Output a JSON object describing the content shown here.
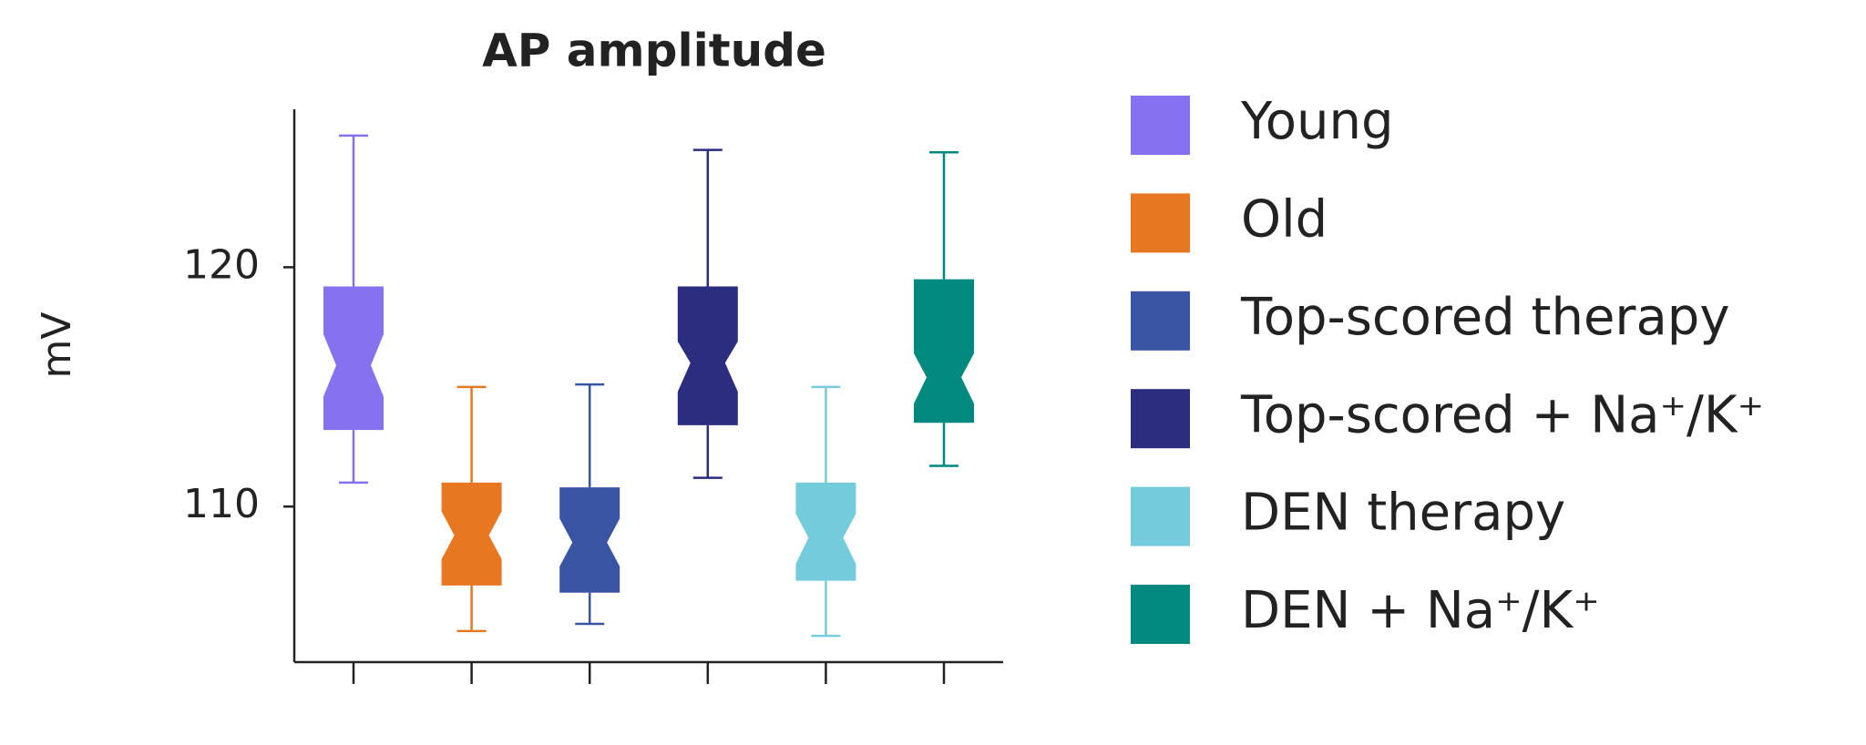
{
  "chart_data": {
    "type": "box",
    "title": "AP amplitude",
    "y_label": "mV",
    "categories": [
      null,
      null,
      null,
      null,
      null,
      null
    ],
    "ylim": [
      103.5,
      126.6
    ],
    "yticks": [
      110,
      120
    ],
    "series": [
      {
        "name": "Young",
        "color": "#8672f0",
        "whisker_low": 111.0,
        "q1": 113.2,
        "notch_low": 114.6,
        "median": 115.9,
        "notch_high": 117.2,
        "q3": 119.2,
        "whisker_high": 125.5
      },
      {
        "name": "Old",
        "color": "#e87722",
        "whisker_low": 104.8,
        "q1": 106.7,
        "notch_low": 107.8,
        "median": 108.8,
        "notch_high": 109.8,
        "q3": 111.0,
        "whisker_high": 115.0
      },
      {
        "name": "Top-scored therapy",
        "color": "#3a54a4",
        "whisker_low": 105.1,
        "q1": 106.4,
        "notch_low": 107.5,
        "median": 108.5,
        "notch_high": 109.5,
        "q3": 110.8,
        "whisker_high": 115.1
      },
      {
        "name": "Top-scored + Na⁺/K⁺",
        "color": "#2b2d7e",
        "whisker_low": 111.2,
        "q1": 113.4,
        "notch_low": 114.8,
        "median": 116.0,
        "notch_high": 116.9,
        "q3": 119.2,
        "whisker_high": 124.9
      },
      {
        "name": "DEN therapy",
        "color": "#74cbdc",
        "whisker_low": 104.6,
        "q1": 106.9,
        "notch_low": 107.6,
        "median": 108.7,
        "notch_high": 109.7,
        "q3": 111.0,
        "whisker_high": 115.0
      },
      {
        "name": "DEN + Na⁺/K⁺",
        "color": "#00897f",
        "whisker_low": 111.7,
        "q1": 113.5,
        "notch_low": 114.3,
        "median": 115.4,
        "notch_high": 116.4,
        "q3": 119.5,
        "whisker_high": 124.8
      }
    ]
  }
}
